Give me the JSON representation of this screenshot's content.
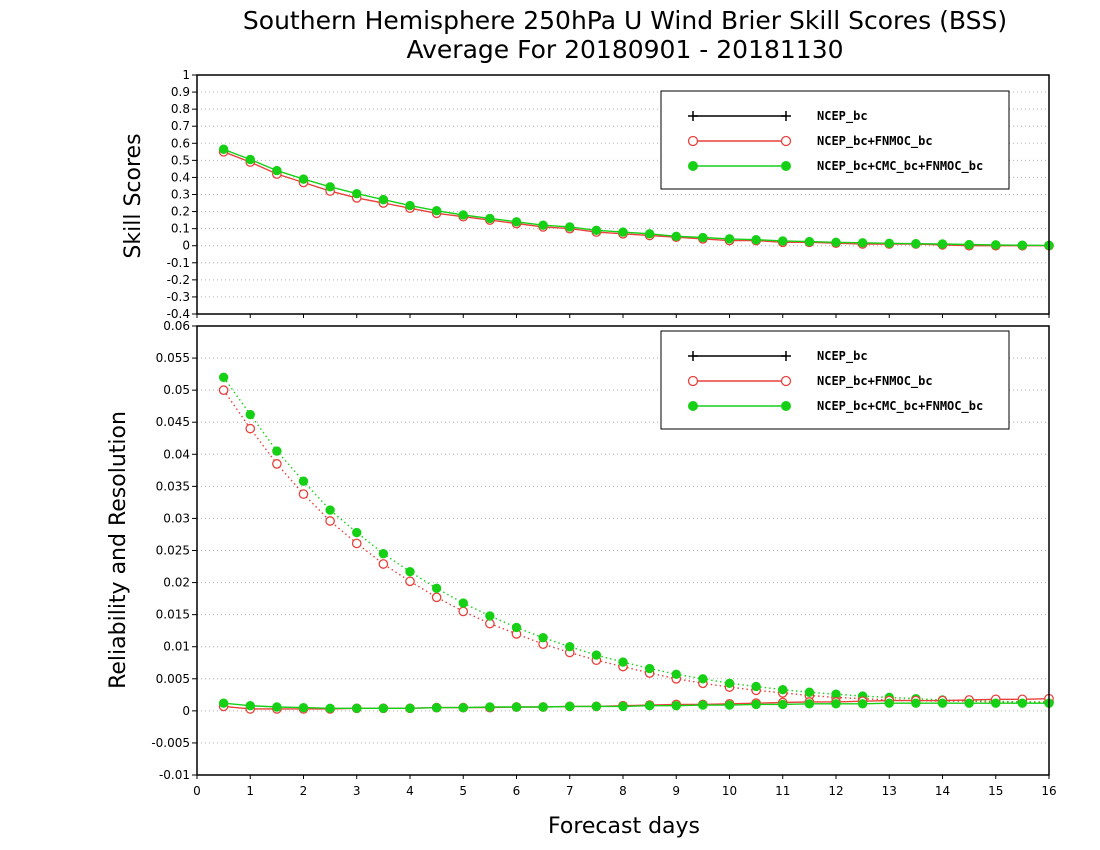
{
  "title_line1": "Southern Hemisphere 250hPa U Wind Brier Skill Scores (BSS)",
  "title_line2": "Average For 20180901 - 20181130",
  "colors": {
    "NCEP_bc": "#000000",
    "NCEP_bc+FNMOC_bc": "#e8413c",
    "NCEP_bc+CMC_bc+FNMOC_bc": "#16d016"
  },
  "chart_data": [
    {
      "type": "line",
      "panel": "top",
      "ylabel": "Skill Scores",
      "ylim": [
        -0.4,
        1
      ],
      "xlim": [
        0,
        16
      ],
      "grid": true,
      "legend_position": "top-right",
      "y_ticks": [
        "1",
        "0.9",
        "0.8",
        "0.7",
        "0.6",
        "0.5",
        "0.4",
        "0.3",
        "0.2",
        "0.1",
        "0",
        "-0.1",
        "-0.2",
        "-0.3",
        "-0.4"
      ],
      "legend": [
        {
          "name": "NCEP_bc",
          "marker": "plus"
        },
        {
          "name": "NCEP_bc+FNMOC_bc",
          "marker": "open-circle"
        },
        {
          "name": "NCEP_bc+CMC_bc+FNMOC_bc",
          "marker": "filled-circle"
        }
      ],
      "x": [
        0.5,
        1,
        1.5,
        2,
        2.5,
        3,
        3.5,
        4,
        4.5,
        5,
        5.5,
        6,
        6.5,
        7,
        7.5,
        8,
        8.5,
        9,
        9.5,
        10,
        10.5,
        11,
        11.5,
        12,
        12.5,
        13,
        13.5,
        14,
        14.5,
        15,
        15.5,
        16
      ],
      "series": [
        {
          "name": "NCEP_bc+FNMOC_bc",
          "style": "solid",
          "values": [
            0.55,
            0.49,
            0.42,
            0.37,
            0.32,
            0.28,
            0.25,
            0.22,
            0.19,
            0.17,
            0.15,
            0.13,
            0.11,
            0.1,
            0.08,
            0.07,
            0.06,
            0.05,
            0.04,
            0.03,
            0.03,
            0.02,
            0.02,
            0.015,
            0.01,
            0.01,
            0.01,
            0.005,
            0.0,
            0.0,
            0.0,
            0.0
          ]
        },
        {
          "name": "NCEP_bc+CMC_bc+FNMOC_bc",
          "style": "solid",
          "values": [
            0.565,
            0.505,
            0.44,
            0.39,
            0.345,
            0.305,
            0.27,
            0.235,
            0.205,
            0.18,
            0.16,
            0.14,
            0.12,
            0.11,
            0.09,
            0.08,
            0.07,
            0.055,
            0.048,
            0.04,
            0.035,
            0.028,
            0.024,
            0.02,
            0.017,
            0.014,
            0.012,
            0.01,
            0.007,
            0.005,
            0.003,
            0.002
          ]
        }
      ]
    },
    {
      "type": "line",
      "panel": "bottom",
      "ylabel": "Reliability and Resolution",
      "xlabel": "Forecast days",
      "ylim": [
        -0.01,
        0.06
      ],
      "xlim": [
        0,
        16
      ],
      "grid": true,
      "legend_position": "top-right",
      "y_ticks": [
        "0.06",
        "0.055",
        "0.05",
        "0.045",
        "0.04",
        "0.035",
        "0.03",
        "0.025",
        "0.02",
        "0.015",
        "0.01",
        "0.005",
        "0",
        "-0.005",
        "-0.01"
      ],
      "x_ticks": [
        "0",
        "1",
        "2",
        "3",
        "4",
        "5",
        "6",
        "7",
        "8",
        "9",
        "10",
        "11",
        "12",
        "13",
        "14",
        "15",
        "16"
      ],
      "legend": [
        {
          "name": "NCEP_bc",
          "marker": "plus"
        },
        {
          "name": "NCEP_bc+FNMOC_bc",
          "marker": "open-circle"
        },
        {
          "name": "NCEP_bc+CMC_bc+FNMOC_bc",
          "marker": "filled-circle"
        }
      ],
      "x": [
        0.5,
        1,
        1.5,
        2,
        2.5,
        3,
        3.5,
        4,
        4.5,
        5,
        5.5,
        6,
        6.5,
        7,
        7.5,
        8,
        8.5,
        9,
        9.5,
        10,
        10.5,
        11,
        11.5,
        12,
        12.5,
        13,
        13.5,
        14,
        14.5,
        15,
        15.5,
        16
      ],
      "series": [
        {
          "name": "NCEP_bc+FNMOC_bc resolution",
          "style": "dotted",
          "values": [
            0.05,
            0.044,
            0.0385,
            0.0338,
            0.0296,
            0.0261,
            0.0229,
            0.0202,
            0.0177,
            0.0155,
            0.0136,
            0.012,
            0.0104,
            0.0091,
            0.0079,
            0.0069,
            0.0059,
            0.005,
            0.0043,
            0.0037,
            0.0032,
            0.0028,
            0.0024,
            0.0021,
            0.0019,
            0.0017,
            0.0016,
            0.0015,
            0.0015,
            0.0014,
            0.0014,
            0.0014
          ]
        },
        {
          "name": "NCEP_bc+CMC_bc+FNMOC_bc resolution",
          "style": "dotted",
          "values": [
            0.052,
            0.0462,
            0.0405,
            0.0358,
            0.0313,
            0.0278,
            0.0245,
            0.0217,
            0.0191,
            0.0168,
            0.0148,
            0.013,
            0.0114,
            0.01,
            0.0087,
            0.0076,
            0.0066,
            0.0057,
            0.005,
            0.0043,
            0.0038,
            0.0033,
            0.0029,
            0.0026,
            0.0023,
            0.0021,
            0.0019,
            0.0017,
            0.0016,
            0.0015,
            0.0014,
            0.0013
          ]
        },
        {
          "name": "NCEP_bc+FNMOC_bc reliability",
          "style": "solid",
          "values": [
            0.0007,
            0.0003,
            0.0003,
            0.0003,
            0.0003,
            0.0004,
            0.0004,
            0.0004,
            0.0005,
            0.0005,
            0.0005,
            0.0006,
            0.0006,
            0.0007,
            0.0007,
            0.0008,
            0.0009,
            0.001,
            0.001,
            0.0011,
            0.0012,
            0.0013,
            0.0014,
            0.0014,
            0.0015,
            0.0016,
            0.0016,
            0.0016,
            0.0017,
            0.0018,
            0.0018,
            0.0019
          ]
        },
        {
          "name": "NCEP_bc+CMC_bc+FNMOC_bc reliability",
          "style": "solid",
          "values": [
            0.0012,
            0.0008,
            0.0006,
            0.0005,
            0.0004,
            0.0004,
            0.0004,
            0.0004,
            0.0005,
            0.0005,
            0.0006,
            0.0006,
            0.0006,
            0.0007,
            0.0007,
            0.0007,
            0.0008,
            0.0008,
            0.0009,
            0.0009,
            0.001,
            0.001,
            0.0011,
            0.0011,
            0.0011,
            0.0012,
            0.0012,
            0.0012,
            0.0012,
            0.0012,
            0.0012,
            0.0012
          ]
        }
      ]
    }
  ]
}
